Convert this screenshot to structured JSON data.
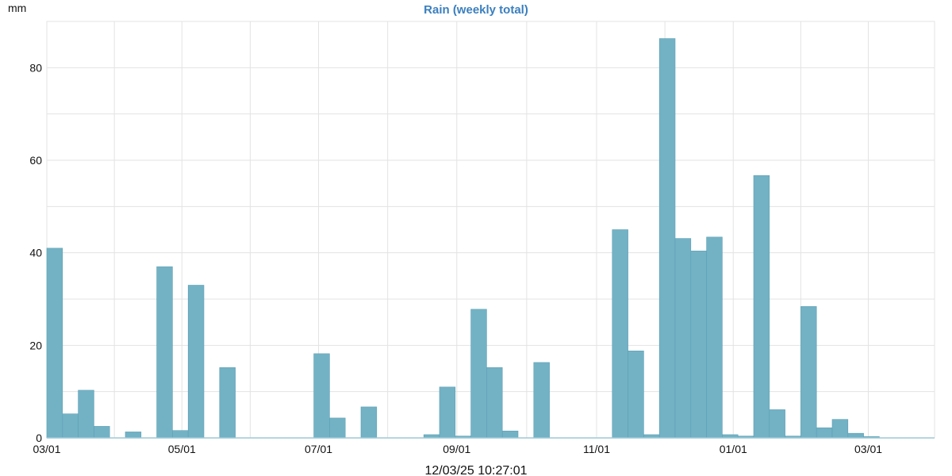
{
  "chart_data": {
    "type": "bar",
    "title": "Rain (weekly total)",
    "ylabel": "mm",
    "ylim": [
      0,
      90
    ],
    "yticks": [
      0,
      20,
      40,
      60,
      80
    ],
    "x_tick_labels": [
      "03/01",
      "05/01",
      "07/01",
      "09/01",
      "11/01",
      "01/01",
      "03/01"
    ],
    "x_tick_week_index": [
      0,
      8.6,
      17.3,
      26.1,
      35,
      43.7,
      52.3
    ],
    "grid": true,
    "timestamp": "12/03/25 10:27:01",
    "series": [
      {
        "values": [
          41,
          5.2,
          10.3,
          2.5,
          0,
          1.3,
          0,
          37,
          1.6,
          33,
          0,
          15.2,
          0,
          0,
          0,
          0,
          0,
          18.2,
          4.3,
          0,
          6.7,
          0,
          0,
          0,
          0.7,
          11,
          0.4,
          27.8,
          15.2,
          1.5,
          0,
          16.3,
          0,
          0,
          0,
          0,
          45,
          18.8,
          0.7,
          86.3,
          43.1,
          40.4,
          43.4,
          0.7,
          0.4,
          56.7,
          6.1,
          0.4,
          28.4,
          2.2,
          4,
          1,
          0.3,
          0
        ]
      }
    ],
    "colors": {
      "bar_fill": "#73b2c5",
      "bar_stroke": "#5d9fb3",
      "title": "#3a7fbf",
      "grid": "#e3e3e3",
      "baseline": "#9ec9d6"
    }
  }
}
